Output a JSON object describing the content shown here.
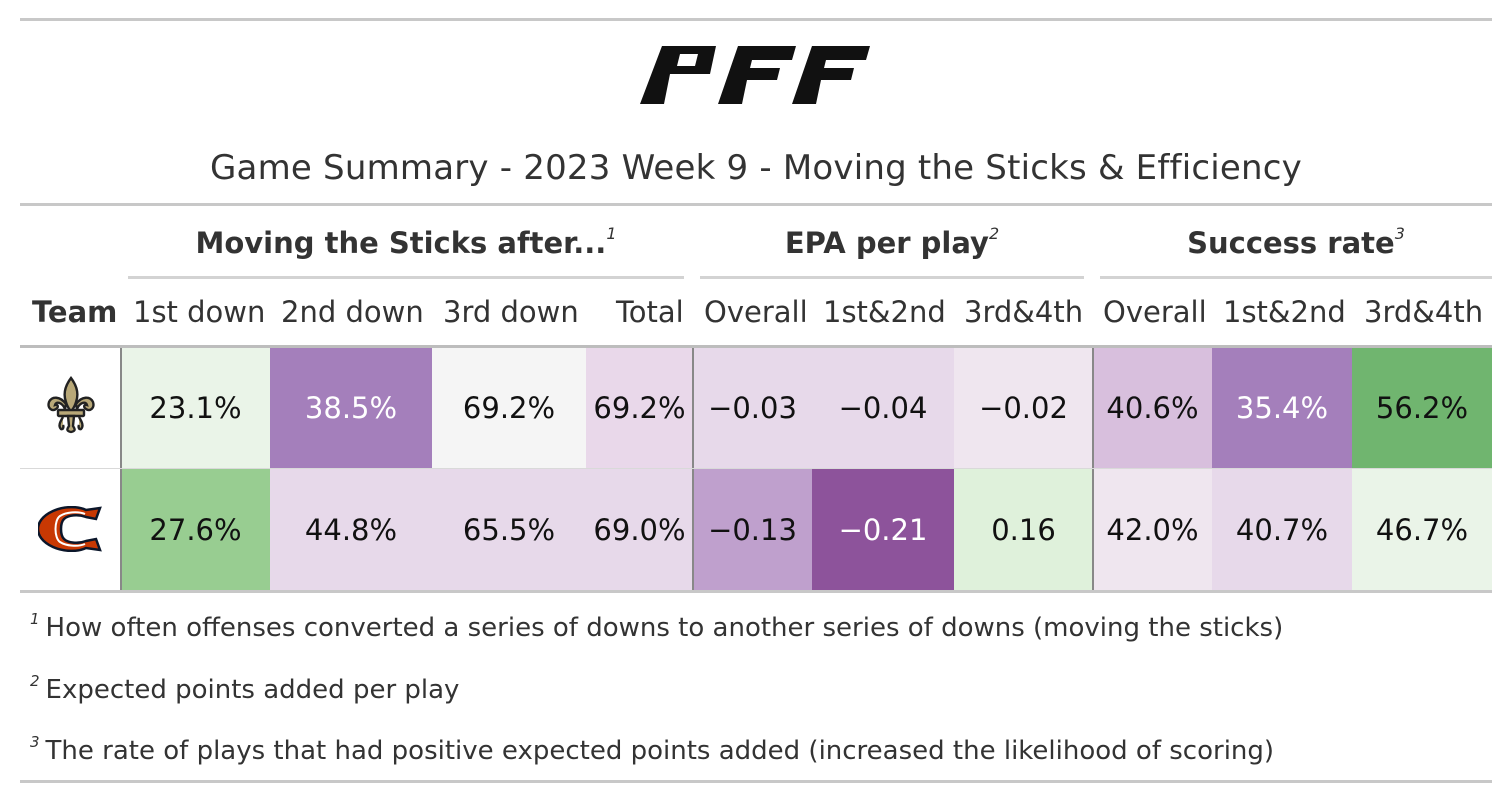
{
  "header": {
    "logo_text": "PFF",
    "title": "Game Summary - 2023 Week 9 - Moving the Sticks & Efficiency"
  },
  "spanners": [
    {
      "label": "Moving the Sticks after...",
      "note": "1"
    },
    {
      "label": "EPA per play",
      "note": "2"
    },
    {
      "label": "Success rate",
      "note": "3"
    }
  ],
  "columns": [
    "Team",
    "1st down",
    "2nd down",
    "3rd down",
    "Total",
    "Overall",
    "1st&2nd",
    "3rd&4th",
    "Overall",
    "1st&2nd",
    "3rd&4th"
  ],
  "rows": [
    {
      "team_icon": "saints-fleur-de-lis-icon",
      "values": [
        "23.1%",
        "38.5%",
        "69.2%",
        "69.2%",
        "−0.03",
        "−0.04",
        "−0.02",
        "40.6%",
        "35.4%",
        "56.2%"
      ],
      "colors": [
        "#eaf4e8",
        "#a47fbb",
        "#f5f5f5",
        "#e9d8ea",
        "#e7d9ea",
        "#e7d9ea",
        "#efe6ef",
        "#d8bfdd",
        "#a47fbb",
        "#70b56f"
      ],
      "light_text": [
        false,
        true,
        false,
        false,
        false,
        false,
        false,
        false,
        true,
        false
      ]
    },
    {
      "team_icon": "bears-c-logo-icon",
      "values": [
        "27.6%",
        "44.8%",
        "65.5%",
        "69.0%",
        "−0.13",
        "−0.21",
        "0.16",
        "42.0%",
        "40.7%",
        "46.7%"
      ],
      "colors": [
        "#98cd91",
        "#e7d9ea",
        "#e7d9ea",
        "#e7d9ea",
        "#bfa0cd",
        "#8d539b",
        "#dff1db",
        "#efe6ef",
        "#e7d9ea",
        "#eaf4e8"
      ],
      "light_text": [
        false,
        false,
        false,
        false,
        false,
        true,
        false,
        false,
        false,
        false
      ]
    }
  ],
  "footnotes": [
    {
      "mark": "1",
      "text": "How often offenses converted a series of downs to another series of downs (moving the sticks)"
    },
    {
      "mark": "2",
      "text": "Expected points added per play"
    },
    {
      "mark": "3",
      "text": "The rate of plays that had positive expected points added (increased the likelihood of scoring)"
    }
  ]
}
